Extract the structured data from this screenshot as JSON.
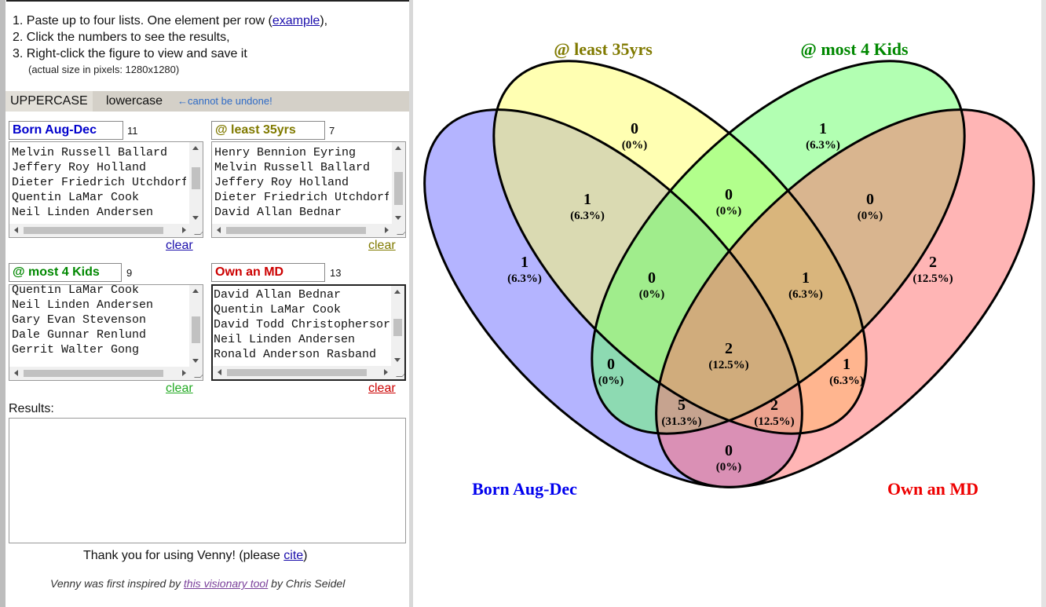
{
  "instructions": {
    "step1_prefix": "1. Paste up to four lists. One element per row (",
    "step1_link": "example",
    "step1_suffix": "),",
    "step2": "2. Click the numbers to see the results,",
    "step3": "3. Right-click the figure to view and save it",
    "size_note": "(actual size in pixels: 1280x1280)"
  },
  "case_bar": {
    "upper": "UPPERCASE",
    "lower": "lowercase",
    "note": "←cannot be undone!"
  },
  "lists": [
    {
      "name": "Born Aug-Dec",
      "count": "11",
      "color": "#0000cc",
      "lines": [
        "Melvin Russell Ballard",
        "Jeffery Roy Holland",
        "Dieter Friedrich Utchdorf",
        "Quentin LaMar Cook",
        "Neil Linden Andersen"
      ],
      "clear": "clear",
      "clear_color": "#1a0dab"
    },
    {
      "name": "@ least 35yrs",
      "count": "7",
      "color": "#807a00",
      "lines": [
        "Henry Bennion Eyring",
        "Melvin Russell Ballard",
        "Jeffery Roy Holland",
        "Dieter Friedrich Utchdorf",
        "David Allan Bednar"
      ],
      "clear": "clear",
      "clear_color": "#807a00"
    },
    {
      "name": "@ most 4 Kids",
      "count": "9",
      "color": "#008800",
      "lines": [
        "Quentin LaMar Cook",
        "Neil Linden Andersen",
        "Gary Evan Stevenson",
        "Dale Gunnar Renlund",
        "Gerrit Walter Gong"
      ],
      "clear": "clear",
      "clear_color": "#22aa22"
    },
    {
      "name": "Own an MD",
      "count": "13",
      "color": "#cc0000",
      "lines": [
        "David Allan Bednar",
        "Quentin LaMar Cook",
        "David Todd Christophersor",
        "Neil Linden Andersen",
        "Ronald Anderson Rasband"
      ],
      "clear": "clear",
      "clear_color": "#cc0000"
    }
  ],
  "results": {
    "label": "Results:",
    "value": ""
  },
  "footer": {
    "thanks_prefix": "Thank you for using Venny!  (please ",
    "thanks_link": "cite",
    "thanks_suffix": ")",
    "inspired_prefix": "Venny was first inspired by ",
    "inspired_link": "this visionary tool",
    "inspired_suffix": " by Chris Seidel"
  },
  "venn": {
    "set_labels": {
      "a": {
        "text": "Born Aug-Dec",
        "color": "#0000ee"
      },
      "b": {
        "text": "@ least 35yrs",
        "color": "#807a00"
      },
      "c": {
        "text": "@ most 4 Kids",
        "color": "#008800"
      },
      "d": {
        "text": "Own an MD",
        "color": "#ee0000"
      }
    },
    "fills": {
      "a": "#6a6aff",
      "b": "#ffff66",
      "c": "#66ff66",
      "d": "#ff6b6b"
    },
    "regions": [
      {
        "id": "b_only",
        "count": "0",
        "pct": "(0%)"
      },
      {
        "id": "c_only",
        "count": "1",
        "pct": "(6.3%)"
      },
      {
        "id": "ab",
        "count": "1",
        "pct": "(6.3%)"
      },
      {
        "id": "bc",
        "count": "0",
        "pct": "(0%)"
      },
      {
        "id": "cd",
        "count": "0",
        "pct": "(0%)"
      },
      {
        "id": "a_only",
        "count": "1",
        "pct": "(6.3%)"
      },
      {
        "id": "abc",
        "count": "0",
        "pct": "(0%)"
      },
      {
        "id": "bcd",
        "count": "1",
        "pct": "(6.3%)"
      },
      {
        "id": "d_only",
        "count": "2",
        "pct": "(12.5%)"
      },
      {
        "id": "abcd",
        "count": "2",
        "pct": "(12.5%)"
      },
      {
        "id": "ac",
        "count": "0",
        "pct": "(0%)"
      },
      {
        "id": "bd",
        "count": "1",
        "pct": "(6.3%)"
      },
      {
        "id": "acd",
        "count": "5",
        "pct": "(31.3%)"
      },
      {
        "id": "abd",
        "count": "2",
        "pct": "(12.5%)"
      },
      {
        "id": "ad",
        "count": "0",
        "pct": "(0%)"
      }
    ]
  }
}
